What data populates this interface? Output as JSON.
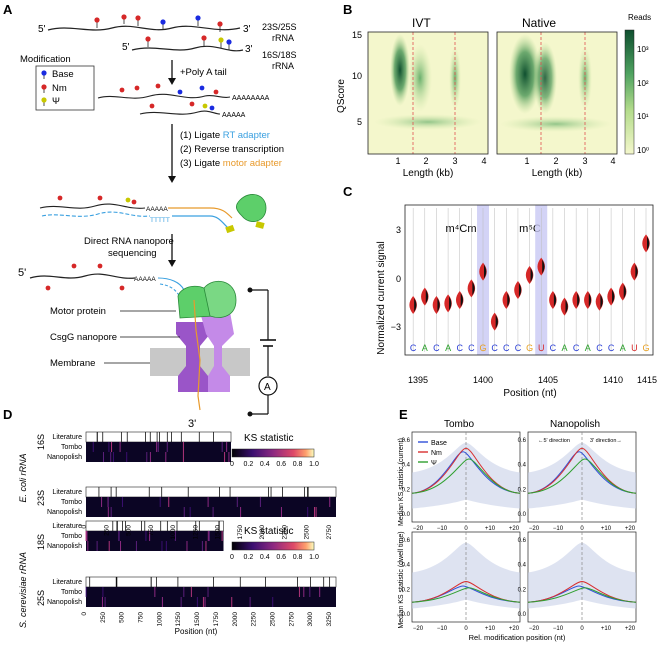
{
  "panels": {
    "a": {
      "letter": "A",
      "rrna_large": {
        "end5": "5'",
        "end3": "3'",
        "label_line1": "23S/25S",
        "label_line2": "rRNA"
      },
      "rrna_small": {
        "end5": "5'",
        "end3": "3'",
        "label_line1": "16S/18S",
        "label_line2": "rRNA"
      },
      "legend": {
        "title": "Modification",
        "items": [
          {
            "label": "Base",
            "color": "#1a2be0"
          },
          {
            "label": "Nm",
            "color": "#d62828"
          },
          {
            "label": "Ψ",
            "color": "#c8c800"
          }
        ]
      },
      "step1": "+Poly A tail",
      "polya_long": "AAAAAAAA",
      "polya_short": "AAAAA",
      "steps": [
        {
          "num": "(1) Ligate ",
          "hl": "RT adapter",
          "hl_color": "#3aa0e0"
        },
        {
          "num": "(2) Reverse transcription",
          "hl": "",
          "hl_color": "#111111"
        },
        {
          "num": "(3) Ligate ",
          "hl": "motor adapter",
          "hl_color": "#e89a2c"
        }
      ],
      "polya_adapter": "AAAAA",
      "polyt": "TTTTT",
      "seq_line1": "Direct RNA nanopore",
      "seq_line2": "sequencing",
      "end5_bottom": "5'",
      "end3_bottom": "3'",
      "polya_bottom": "AAAAA",
      "labels": {
        "motor": "Motor protein",
        "pore": "CsgG nanopore",
        "membrane": "Membrane",
        "ammeter": "A"
      }
    },
    "b": {
      "letter": "B",
      "titles": [
        "IVT",
        "Native"
      ],
      "ylabel": "QScore",
      "xlabel": "Length (kb)",
      "yticks": [
        "5",
        "10",
        "15"
      ],
      "xticks": [
        "1",
        "2",
        "3",
        "4"
      ],
      "colorbar": {
        "title": "Reads",
        "ticks": [
          "10³",
          "10²",
          "10¹",
          "10⁰"
        ]
      },
      "colors": {
        "low": "#f4f7cc",
        "mid": "#7fc47a",
        "high": "#0f4f2f",
        "cutoff": "#e05050"
      }
    },
    "c": {
      "letter": "C",
      "mods": [
        "m⁴Cm",
        "m⁵C"
      ],
      "ylabel": "Normalized current signal",
      "xlabel": "Position (nt)",
      "yticks": [
        "3",
        "0",
        "−3"
      ],
      "xticks": [
        "1395",
        "1400",
        "1405",
        "1410",
        "1415"
      ],
      "bases": [
        "C",
        "A",
        "C",
        "A",
        "C",
        "C",
        "G",
        "C",
        "C",
        "C",
        "G",
        "U",
        "C",
        "A",
        "C",
        "A",
        "C",
        "C",
        "A",
        "U",
        "G"
      ],
      "base_colors": {
        "A": "#2aa02a",
        "C": "#2b3fd6",
        "G": "#e8a020",
        "U": "#d62828"
      },
      "chart_data": {
        "type": "violin",
        "title": "",
        "xlabel": "Position (nt)",
        "ylabel": "Normalized current signal",
        "x": [
          1395,
          1396,
          1397,
          1398,
          1399,
          1400,
          1401,
          1402,
          1403,
          1404,
          1405,
          1406,
          1407,
          1408,
          1409,
          1410,
          1411,
          1412,
          1413,
          1414,
          1415
        ],
        "y": [
          -1.5,
          -1.0,
          -1.5,
          -1.4,
          -1.2,
          -0.5,
          0.5,
          -2.5,
          -1.2,
          -0.6,
          0.3,
          0.8,
          -1.2,
          -1.6,
          -1.2,
          -1.2,
          -1.3,
          -1.0,
          -0.7,
          0.5,
          2.2
        ],
        "ylim": [
          -4.5,
          4.5
        ],
        "highlight_positions": [
          1401,
          1406
        ]
      }
    },
    "d": {
      "letter": "D",
      "kstitle": "KS statistic",
      "ks_ticks": [
        "0",
        "0.2",
        "0.4",
        "0.6",
        "0.8",
        "1.0"
      ],
      "row_labels": [
        "Literature",
        "Tombo",
        "Nanopolish"
      ],
      "org_ecoli": "E. coli rRNA",
      "org_yeast": "S. cerevisiae rRNA",
      "sub_ecoli": [
        "16S",
        "23S"
      ],
      "sub_yeast": [
        "18S",
        "25S"
      ],
      "ecoli_xticks": [
        "0",
        "250",
        "500",
        "750",
        "1000",
        "1250",
        "1500",
        "1750",
        "2000",
        "2250",
        "2500",
        "2750"
      ],
      "yeast_xticks": [
        "0",
        "250",
        "500",
        "750",
        "1000",
        "1250",
        "1500",
        "1750",
        "2000",
        "2250",
        "2500",
        "2750",
        "3000",
        "3250"
      ],
      "xlabel": "Position (nt)"
    },
    "e": {
      "letter": "E",
      "col_titles": [
        "Tombo",
        "Nanopolish"
      ],
      "ylabel_top": "Median KS statistic (current)",
      "ylabel_bottom": "Median KS statistic (dwell time)",
      "xlabel": "Rel. modification position (nt)",
      "direction_left": "←5' direction",
      "direction_right": "3' direction→",
      "legend": [
        {
          "label": "Base",
          "color": "#3050d8"
        },
        {
          "label": "Nm",
          "color": "#d83030"
        },
        {
          "label": "Ψ",
          "color": "#30a030"
        }
      ],
      "yticks": [
        "0.0",
        "0.2",
        "0.4",
        "0.6"
      ],
      "xticks": [
        "−20",
        "−10",
        "0",
        "+10",
        "+20"
      ]
    }
  }
}
